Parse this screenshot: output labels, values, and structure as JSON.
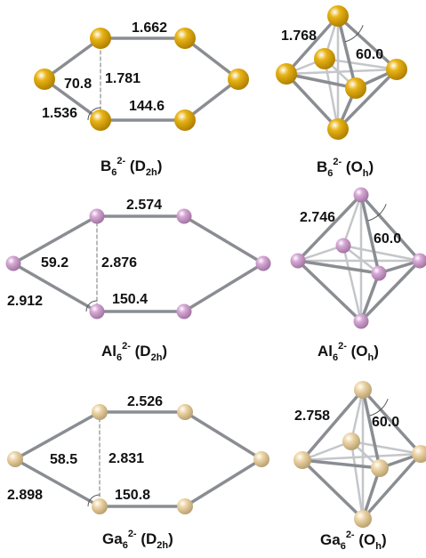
{
  "colors": {
    "boron": "#e8b416",
    "boron_dark": "#b07f00",
    "aluminum": "#d7a8d6",
    "aluminum_dark": "#a074a0",
    "gallium": "#eed6a8",
    "gallium_dark": "#b8a070",
    "bond": "#8a8d92",
    "bond_light": "#c4c6ca",
    "text": "#111111"
  },
  "molecules": [
    {
      "id": "b6-d2h",
      "element": "boron",
      "geometry": "D2h-planar",
      "labels": [
        "1.662",
        "1.781",
        "70.8",
        "1.536",
        "144.6"
      ],
      "caption": {
        "symbol": "B",
        "sub": "6",
        "sup": "2-",
        "group": "D",
        "group_sub": "2h"
      }
    },
    {
      "id": "b6-oh",
      "element": "boron",
      "geometry": "Oh-octahedron",
      "labels": [
        "1.768",
        "60.0"
      ],
      "caption": {
        "symbol": "B",
        "sub": "6",
        "sup": "2-",
        "group": "O",
        "group_sub": "h"
      }
    },
    {
      "id": "al6-d2h",
      "element": "aluminum",
      "geometry": "D2h-planar",
      "labels": [
        "2.574",
        "2.876",
        "59.2",
        "2.912",
        "150.4"
      ],
      "caption": {
        "symbol": "Al",
        "sub": "6",
        "sup": "2-",
        "group": "D",
        "group_sub": "2h"
      }
    },
    {
      "id": "al6-oh",
      "element": "aluminum",
      "geometry": "Oh-octahedron",
      "labels": [
        "2.746",
        "60.0"
      ],
      "caption": {
        "symbol": "Al",
        "sub": "6",
        "sup": "2-",
        "group": "O",
        "group_sub": "h"
      }
    },
    {
      "id": "ga6-d2h",
      "element": "gallium",
      "geometry": "D2h-planar",
      "labels": [
        "2.526",
        "2.831",
        "58.5",
        "2.898",
        "150.8"
      ],
      "caption": {
        "symbol": "Ga",
        "sub": "6",
        "sup": "2-",
        "group": "D",
        "group_sub": "2h"
      }
    },
    {
      "id": "ga6-oh",
      "element": "gallium",
      "geometry": "Oh-octahedron",
      "labels": [
        "2.758",
        "60.0"
      ],
      "caption": {
        "symbol": "Ga",
        "sub": "6",
        "sup": "2-",
        "group": "O",
        "group_sub": "h"
      }
    }
  ]
}
